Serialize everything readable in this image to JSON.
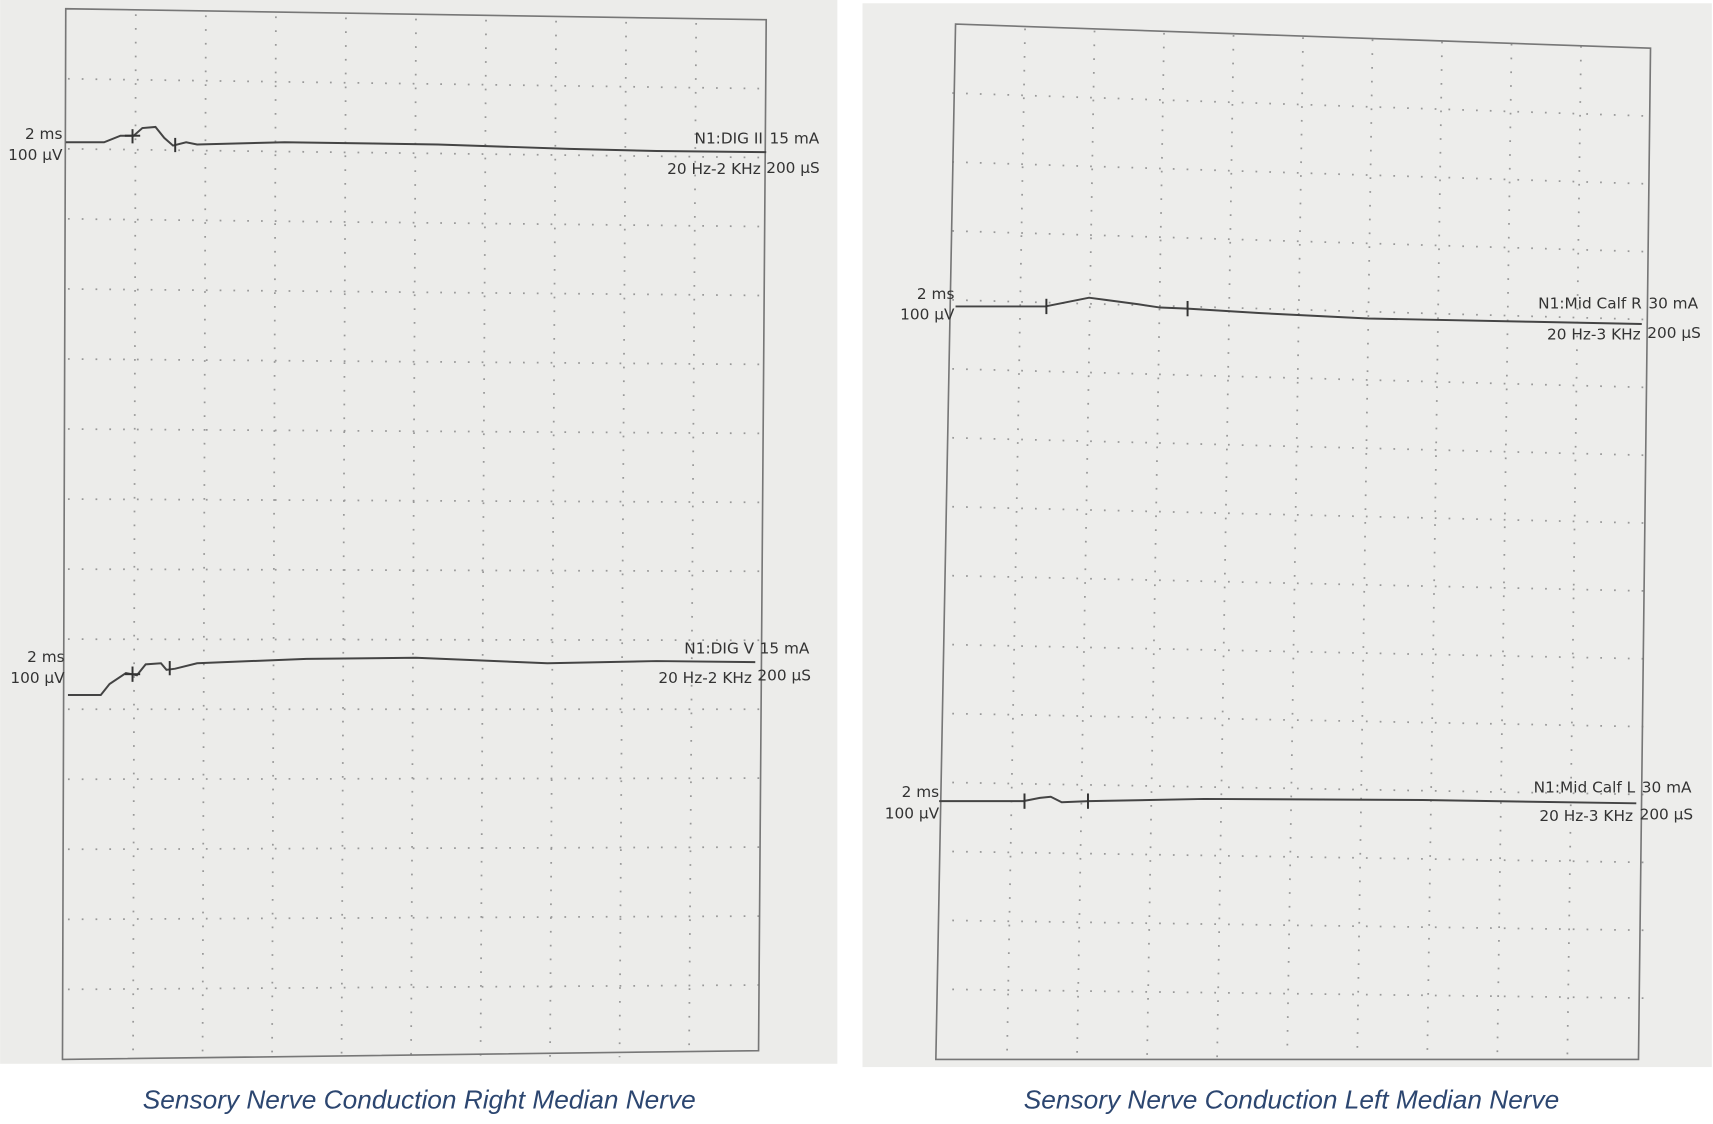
{
  "panels": [
    {
      "caption": "Sensory Nerve Conduction Right Median Nerve",
      "traces": [
        {
          "sweep": "2 ms",
          "gain": "100 µV",
          "site": "N1:DIG II",
          "current": "15 mA",
          "filter": "20 Hz-2 KHz",
          "duration": "200 µS"
        },
        {
          "sweep": "2 ms",
          "gain": "100 µV",
          "site": "N1:DIG V",
          "current": "15 mA",
          "filter": "20 Hz-2 KHz",
          "duration": "200 µS"
        }
      ]
    },
    {
      "caption": "Sensory Nerve Conduction Left Median Nerve",
      "traces": [
        {
          "sweep": "2 ms",
          "gain": "100 µV",
          "site": "N1:Mid Calf R",
          "current": "30 mA",
          "filter": "20 Hz-3 KHz",
          "duration": "200 µS"
        },
        {
          "sweep": "2 ms",
          "gain": "100 µV",
          "site": "N1:Mid Calf L",
          "current": "30 mA",
          "filter": "20 Hz-3 KHz",
          "duration": "200 µS"
        }
      ]
    }
  ]
}
